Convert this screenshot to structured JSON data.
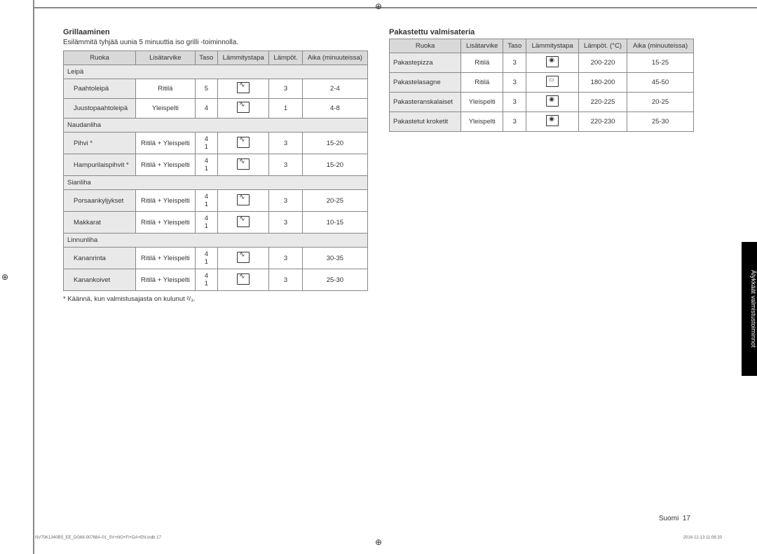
{
  "left": {
    "heading": "Grillaaminen",
    "sub": "Esilämmitä tyhjää uunia 5 minuuttia iso grilli -toiminnolla.",
    "headers": [
      "Ruoka",
      "Lisätarvike",
      "Taso",
      "Lämmitystapa",
      "Lämpöt.",
      "Aika (minuuteissa)"
    ],
    "note": "* Käännä, kun valmistusajasta on kulunut ²/₃.",
    "groups": [
      {
        "group": "Leipä",
        "rows": [
          {
            "food": "Paahtoleipä",
            "acc": "Ritilä",
            "level": "5",
            "mode": "grill",
            "temp": "3",
            "time": "2-4"
          },
          {
            "food": "Juustopaahtoleipä",
            "acc": "Yleispelti",
            "level": "4",
            "mode": "grill",
            "temp": "1",
            "time": "4-8"
          }
        ]
      },
      {
        "group": "Naudanliha",
        "rows": [
          {
            "food": "Pihvi *",
            "acc": "Ritilä + Yleispelti",
            "level": "4\n1",
            "mode": "grill",
            "temp": "3",
            "time": "15-20"
          },
          {
            "food": "Hampurilaispihvit *",
            "acc": "Ritilä + Yleispelti",
            "level": "4\n1",
            "mode": "grill",
            "temp": "3",
            "time": "15-20"
          }
        ]
      },
      {
        "group": "Sianliha",
        "rows": [
          {
            "food": "Porsaankyljykset",
            "acc": "Ritilä + Yleispelti",
            "level": "4\n1",
            "mode": "grill",
            "temp": "3",
            "time": "20-25"
          },
          {
            "food": "Makkarat",
            "acc": "Ritilä + Yleispelti",
            "level": "4\n1",
            "mode": "grill",
            "temp": "3",
            "time": "10-15"
          }
        ]
      },
      {
        "group": "Linnunliha",
        "rows": [
          {
            "food": "Kananrinta",
            "acc": "Ritilä + Yleispelti",
            "level": "4\n1",
            "mode": "grill",
            "temp": "3",
            "time": "30-35"
          },
          {
            "food": "Kanankoivet",
            "acc": "Ritilä + Yleispelti",
            "level": "4\n1",
            "mode": "grill",
            "temp": "3",
            "time": "25-30"
          }
        ]
      }
    ]
  },
  "right": {
    "heading": "Pakastettu valmisateria",
    "headers": [
      "Ruoka",
      "Lisätarvike",
      "Taso",
      "Lämmitystapa",
      "Lämpöt. (°C)",
      "Aika (minuuteissa)"
    ],
    "rows": [
      {
        "food": "Pakastepizza",
        "acc": "Ritilä",
        "level": "3",
        "mode": "fan",
        "temp": "200-220",
        "time": "15-25"
      },
      {
        "food": "Pakastelasagne",
        "acc": "Ritilä",
        "level": "3",
        "mode": "conv",
        "temp": "180-200",
        "time": "45-50"
      },
      {
        "food": "Pakasteranskalaiset",
        "acc": "Yleispelti",
        "level": "3",
        "mode": "fan",
        "temp": "220-225",
        "time": "20-25"
      },
      {
        "food": "Pakastetut kroketit",
        "acc": "Yleispelti",
        "level": "3",
        "mode": "fan",
        "temp": "220-230",
        "time": "25-30"
      }
    ]
  },
  "sideTab": "Älykkäät valmistustoiminnot",
  "pageLabel": "Suomi",
  "pageNum": "17",
  "footLeft": "NV70K1340BS_EE_DG68-00768A-01_SV+NO+FI+DA+EN.indb   17",
  "footRight": "2016-12-13   11:08:20"
}
